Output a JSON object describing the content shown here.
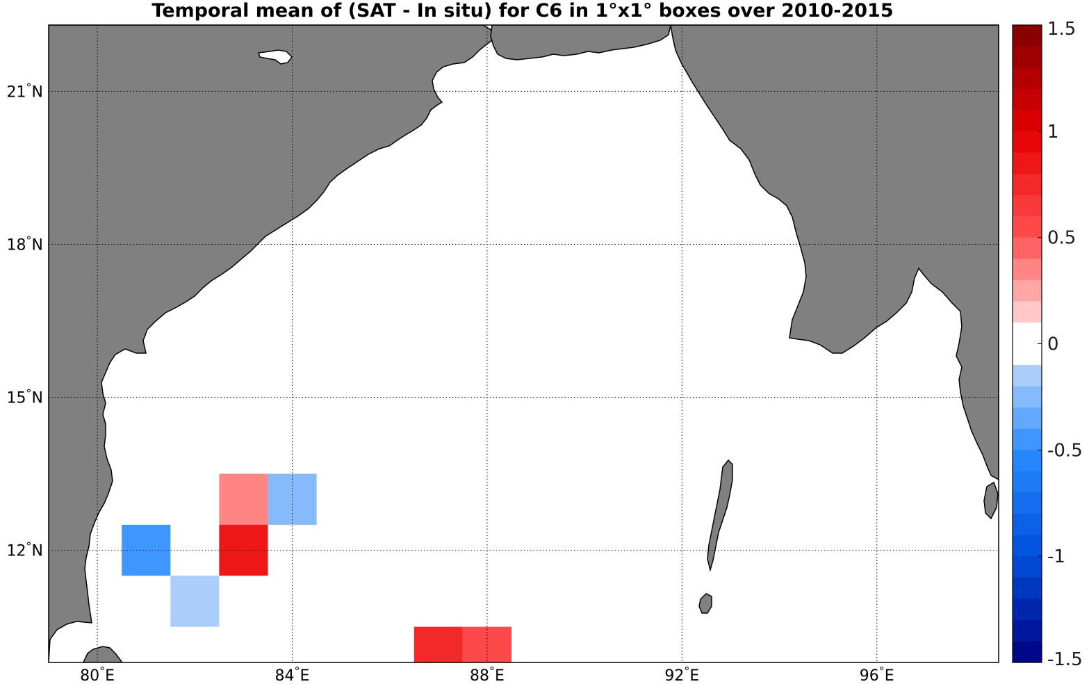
{
  "title": "Temporal mean of (SAT - In situ) for C6 in 1°x1° boxes over 2010-2015",
  "x_ticks": [
    {
      "lon": 80,
      "label": "80°E"
    },
    {
      "lon": 84,
      "label": "84°E"
    },
    {
      "lon": 88,
      "label": "88°E"
    },
    {
      "lon": 92,
      "label": "92°E"
    },
    {
      "lon": 96,
      "label": "96°E"
    }
  ],
  "y_ticks": [
    {
      "lat": 12,
      "label": "12°N"
    },
    {
      "lat": 15,
      "label": "15°N"
    },
    {
      "lat": 18,
      "label": "18°N"
    },
    {
      "lat": 21,
      "label": "21°N"
    }
  ],
  "colorbar": {
    "min": -1.5,
    "max": 1.5,
    "levels": 30,
    "labels": [
      "1.5",
      "1",
      "0.5",
      "0",
      "-0.5",
      "-1",
      "-1.5"
    ]
  },
  "colors": {
    "land": "#808080",
    "ocean": "#ffffff",
    "coast": "#000000"
  },
  "chart_data": {
    "type": "heatmap",
    "title": "Temporal mean of (SAT - In situ) for C6 in 1°x1° boxes over 2010-2015",
    "xlabel": "",
    "ylabel": "",
    "xlim": [
      79,
      98.5
    ],
    "ylim": [
      9.8,
      22.3
    ],
    "clim": [
      -1.5,
      1.5
    ],
    "colormap": "blue-white-red",
    "grid": true,
    "boxes": [
      {
        "lon": 83,
        "lat": 13,
        "value": 0.4
      },
      {
        "lon": 84,
        "lat": 13,
        "value": -0.25
      },
      {
        "lon": 81,
        "lat": 12,
        "value": -0.45
      },
      {
        "lon": 83,
        "lat": 12,
        "value": 0.85
      },
      {
        "lon": 82,
        "lat": 11,
        "value": -0.15
      },
      {
        "lon": 87,
        "lat": 10,
        "value": 0.8
      },
      {
        "lon": 88,
        "lat": 10,
        "value": 0.55
      }
    ]
  }
}
